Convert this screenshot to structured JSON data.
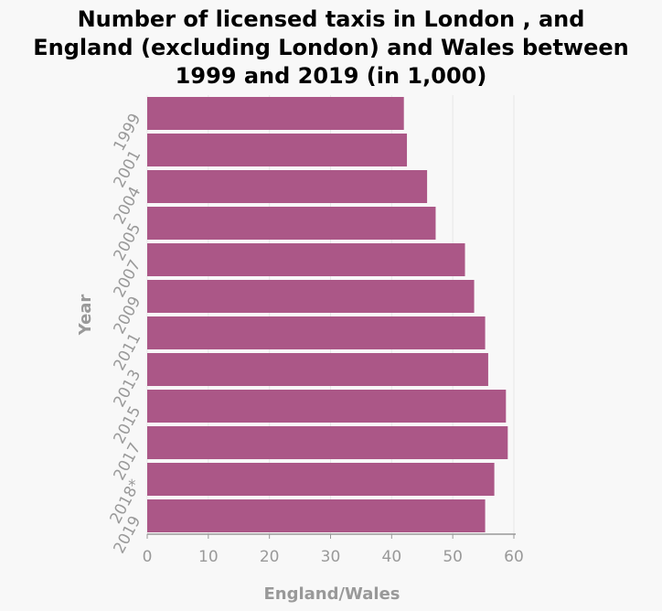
{
  "chart_data": {
    "type": "bar",
    "orientation": "horizontal",
    "title": "Number of licensed taxis in London , and England (excluding London) and Wales between 1999 and 2019 (in 1,000)",
    "title_lines": [
      "Number of licensed taxis in London , and",
      "England (excluding London) and Wales between",
      "1999 and 2019 (in 1,000)"
    ],
    "xlabel": "England/Wales",
    "ylabel": "Year",
    "xlim": [
      0,
      60
    ],
    "xticks": [
      "0",
      "10",
      "20",
      "30",
      "40",
      "50",
      "60"
    ],
    "grid": true,
    "categories": [
      "1999",
      "2001",
      "2004",
      "2005",
      "2007",
      "2009",
      "2011",
      "2013",
      "2015",
      "2017",
      "2018*",
      "2019"
    ],
    "values": [
      42.0,
      42.5,
      45.8,
      47.2,
      52.0,
      53.5,
      55.3,
      55.8,
      58.7,
      59.0,
      56.8,
      55.3
    ],
    "colors": {
      "bar": "#ab5787",
      "background": "#f8f8f8",
      "text": "#999999",
      "grid": "#e8e8e8",
      "axis": "#999999"
    }
  }
}
